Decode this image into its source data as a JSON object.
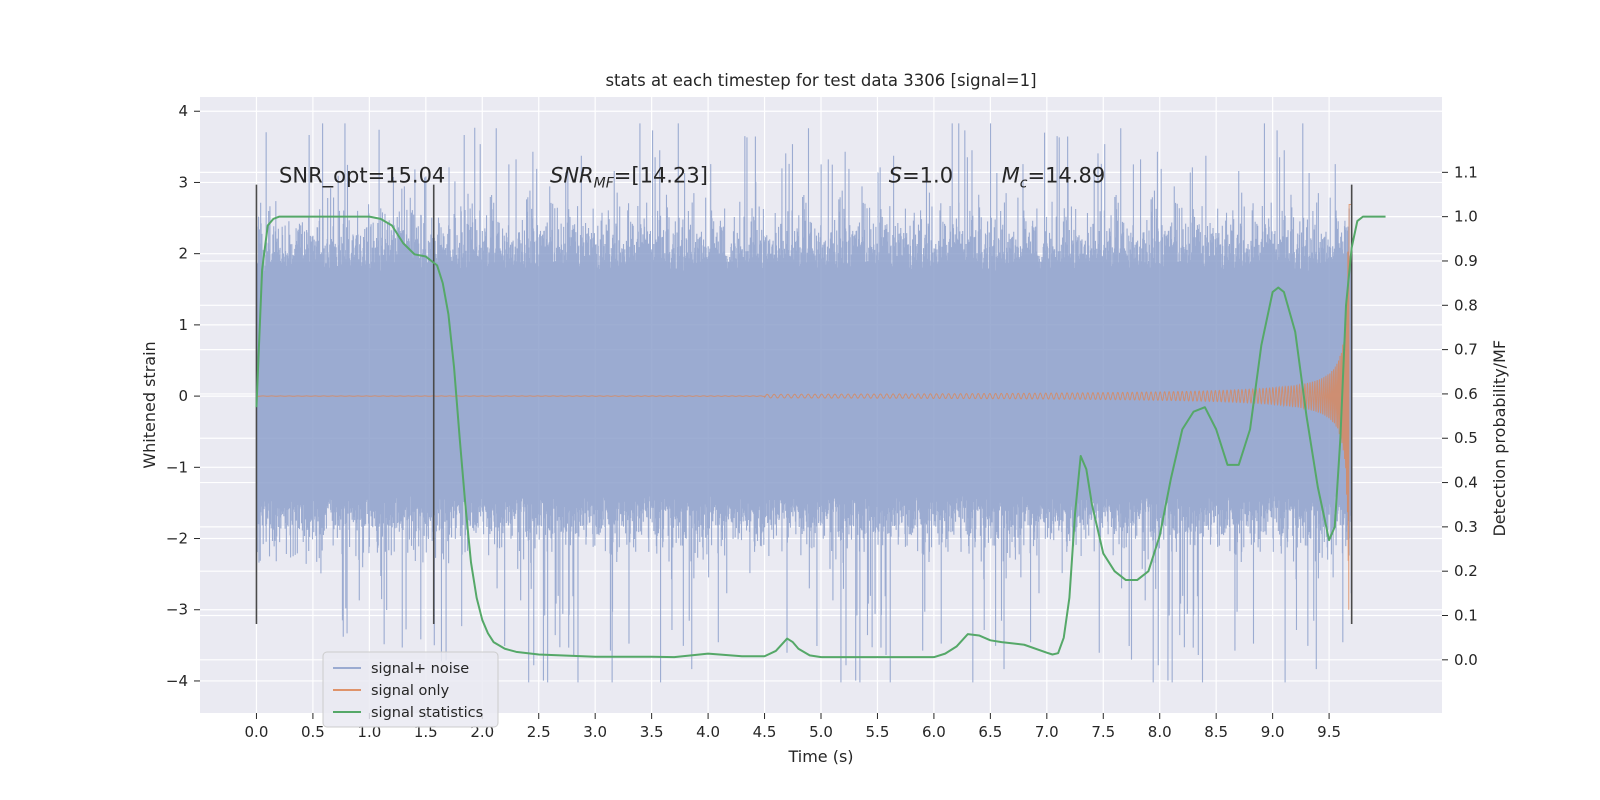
{
  "chart_data": {
    "type": "line",
    "title": "stats at each timestep for test data 3306 [signal=1]",
    "xlabel": "Time (s)",
    "ylabel": "Whitened strain",
    "y2label": "Detection probability/MF",
    "xlim": [
      -0.5,
      10.5
    ],
    "ylim": [
      -4.45,
      4.2
    ],
    "y2lim": [
      -0.12,
      1.27
    ],
    "x_ticks": [
      0.0,
      0.5,
      1.0,
      1.5,
      2.0,
      2.5,
      3.0,
      3.5,
      4.0,
      4.5,
      5.0,
      5.5,
      6.0,
      6.5,
      7.0,
      7.5,
      8.0,
      8.5,
      9.0,
      9.5
    ],
    "y_ticks": [
      -4,
      -3,
      -2,
      -1,
      0,
      1,
      2,
      3,
      4
    ],
    "y2_ticks": [
      0.0,
      0.1,
      0.2,
      0.3,
      0.4,
      0.5,
      0.6,
      0.7,
      0.8,
      0.9,
      1.0,
      1.1
    ],
    "grid": true,
    "legend_position": "lower-left",
    "colors": {
      "noise": "#8da0cb",
      "signal": "#dd8452",
      "stats": "#55a868",
      "background": "#eaeaf2",
      "grid": "#ffffff",
      "vline": "#4a4a4a"
    },
    "annotations": [
      {
        "text": "SNR_opt=15.04",
        "x": 0.2,
        "y": 3.0
      },
      {
        "text": "SNR",
        "sub": "MF",
        "tail": "=[14.23]",
        "italic": true,
        "x": 2.6,
        "y": 3.0
      },
      {
        "text": "S",
        "tail": "=1.0",
        "italic": true,
        "x": 5.6,
        "y": 3.0
      },
      {
        "text": "M",
        "sub": "c",
        "tail": "=14.89",
        "italic": true,
        "x": 6.6,
        "y": 3.0
      }
    ],
    "vlines": [
      {
        "x": 0.0,
        "ymin": -3.2,
        "ymax": 2.97
      },
      {
        "x": 1.57,
        "ymin": -3.2,
        "ymax": 2.97
      },
      {
        "x": 9.7,
        "ymin": -3.2,
        "ymax": 2.97
      }
    ],
    "noise_series": {
      "name": "signal+ noise",
      "t_start": 0.0,
      "t_end": 9.7,
      "band_low": -1.4,
      "band_high": 1.75,
      "max_spike": 3.83,
      "min_spike": -4.02
    },
    "signal_series": {
      "name": "signal only",
      "t_start": 0.0,
      "t_end": 9.7,
      "merger_time": 9.68,
      "peak_amplitude": 3.0
    },
    "stats_series": {
      "name": "signal statistics",
      "x": [
        0.0,
        0.05,
        0.1,
        0.15,
        0.2,
        0.3,
        0.5,
        0.7,
        0.9,
        1.0,
        1.1,
        1.2,
        1.3,
        1.4,
        1.5,
        1.6,
        1.65,
        1.7,
        1.75,
        1.8,
        1.85,
        1.9,
        1.95,
        2.0,
        2.05,
        2.1,
        2.2,
        2.3,
        2.5,
        3.0,
        3.5,
        3.7,
        4.0,
        4.3,
        4.5,
        4.6,
        4.7,
        4.75,
        4.8,
        4.9,
        5.0,
        5.2,
        5.5,
        6.0,
        6.1,
        6.2,
        6.3,
        6.4,
        6.5,
        6.6,
        6.8,
        7.0,
        7.05,
        7.1,
        7.15,
        7.2,
        7.25,
        7.3,
        7.35,
        7.4,
        7.5,
        7.6,
        7.7,
        7.8,
        7.9,
        8.0,
        8.1,
        8.2,
        8.3,
        8.4,
        8.5,
        8.6,
        8.7,
        8.8,
        8.9,
        9.0,
        9.05,
        9.1,
        9.2,
        9.3,
        9.4,
        9.5,
        9.55,
        9.6,
        9.65,
        9.7,
        9.75,
        9.8,
        9.9,
        10.0
      ],
      "y": [
        0.57,
        0.88,
        0.98,
        0.995,
        1.0,
        1.0,
        1.0,
        1.0,
        1.0,
        1.0,
        0.995,
        0.98,
        0.94,
        0.915,
        0.91,
        0.89,
        0.85,
        0.78,
        0.66,
        0.5,
        0.35,
        0.22,
        0.14,
        0.09,
        0.06,
        0.04,
        0.025,
        0.018,
        0.012,
        0.007,
        0.007,
        0.006,
        0.014,
        0.008,
        0.008,
        0.02,
        0.048,
        0.04,
        0.025,
        0.01,
        0.006,
        0.006,
        0.006,
        0.006,
        0.014,
        0.03,
        0.058,
        0.055,
        0.044,
        0.04,
        0.034,
        0.016,
        0.012,
        0.015,
        0.05,
        0.14,
        0.33,
        0.46,
        0.43,
        0.35,
        0.24,
        0.2,
        0.18,
        0.18,
        0.2,
        0.28,
        0.41,
        0.52,
        0.56,
        0.57,
        0.52,
        0.44,
        0.44,
        0.52,
        0.71,
        0.83,
        0.84,
        0.83,
        0.74,
        0.55,
        0.39,
        0.27,
        0.3,
        0.5,
        0.8,
        0.93,
        0.99,
        1.0,
        1.0,
        1.0
      ]
    },
    "legend": [
      {
        "label": "signal+ noise",
        "key": "noise"
      },
      {
        "label": "signal only",
        "key": "signal"
      },
      {
        "label": "signal statistics",
        "key": "stats"
      }
    ]
  }
}
